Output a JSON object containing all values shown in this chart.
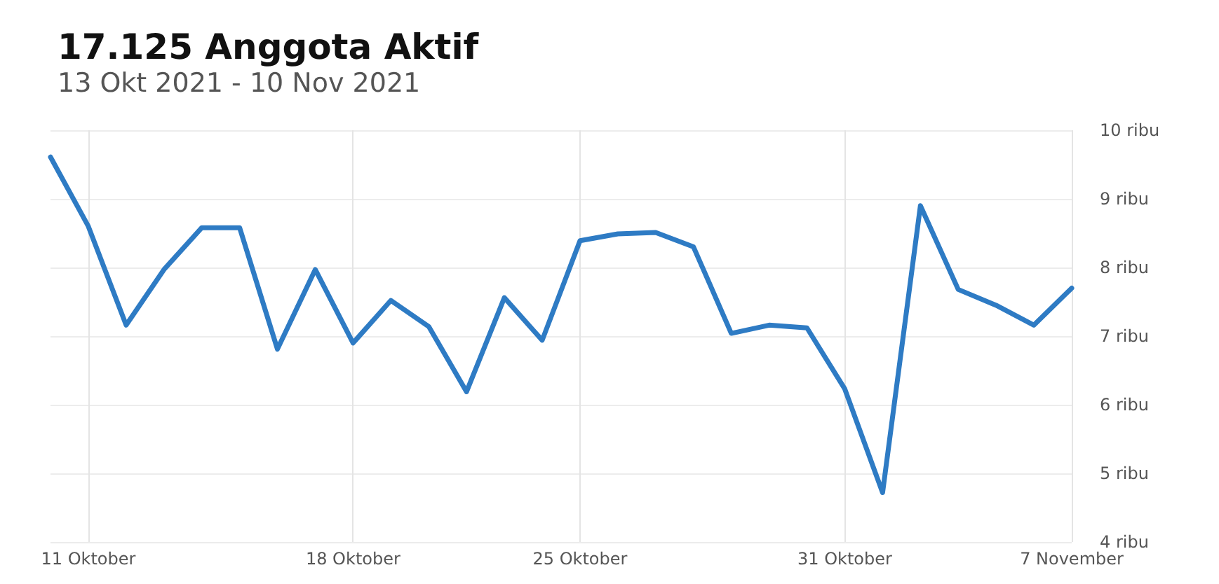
{
  "chart_data": {
    "type": "line",
    "title": "17.125 Anggota Aktif",
    "subtitle": "13 Okt 2021 - 10 Nov 2021",
    "categories": [
      null,
      "11 Oktober",
      null,
      null,
      null,
      null,
      null,
      null,
      "18 Oktober",
      null,
      null,
      null,
      null,
      null,
      "25 Oktober",
      null,
      null,
      null,
      null,
      null,
      null,
      "31 Oktober",
      null,
      null,
      null,
      null,
      null,
      "7 November"
    ],
    "series": [
      {
        "color": "#2e7bc4",
        "values": [
          9.61,
          8.6,
          7.16,
          7.97,
          8.58,
          8.58,
          6.81,
          7.97,
          6.9,
          7.52,
          7.14,
          6.19,
          7.56,
          6.94,
          8.39,
          8.49,
          8.51,
          8.3,
          7.04,
          7.16,
          7.12,
          6.23,
          4.72,
          8.9,
          7.68,
          7.45,
          7.16,
          7.7
        ]
      }
    ],
    "ylim": [
      4,
      10
    ],
    "yticks": [
      {
        "value": 4,
        "label": "4 ribu"
      },
      {
        "value": 5,
        "label": "5 ribu"
      },
      {
        "value": 6,
        "label": "6 ribu"
      },
      {
        "value": 7,
        "label": "7 ribu"
      },
      {
        "value": 8,
        "label": "8 ribu"
      },
      {
        "value": 9,
        "label": "9 ribu"
      },
      {
        "value": 10,
        "label": "10 ribu"
      }
    ],
    "grid": true,
    "marker": "none",
    "line_style": "solid"
  }
}
